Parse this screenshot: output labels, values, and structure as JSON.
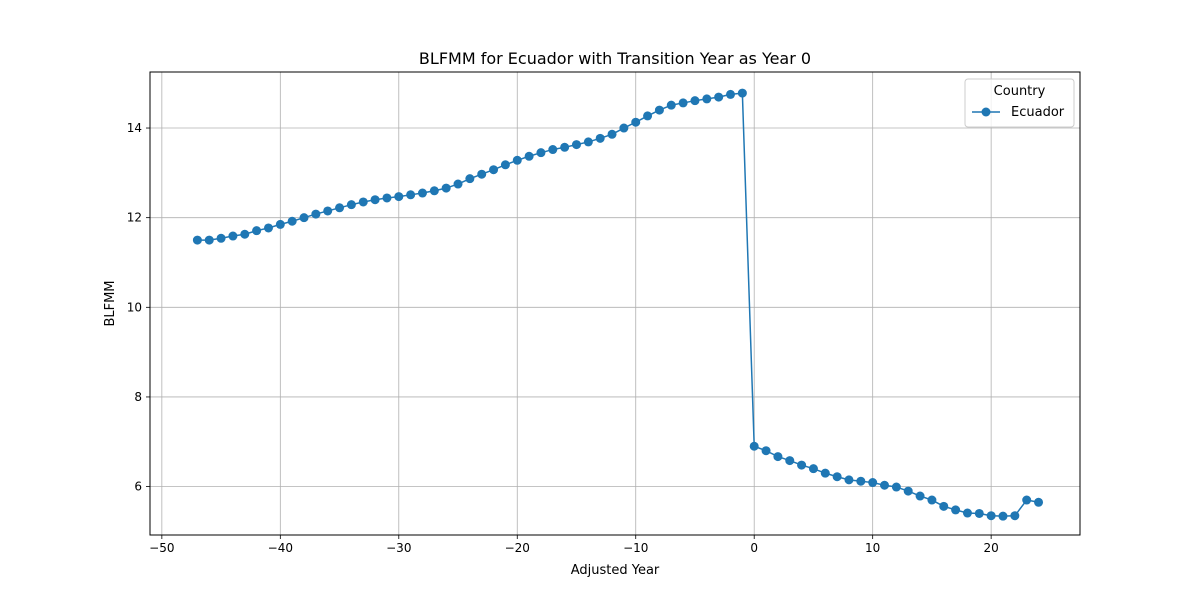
{
  "chart_data": {
    "type": "line",
    "title": "BLFMM for Ecuador with Transition Year as Year 0",
    "xlabel": "Adjusted Year",
    "ylabel": "BLFMM",
    "xlim": [
      -51,
      27.5
    ],
    "ylim": [
      4.92,
      15.25
    ],
    "xticks": [
      -50,
      -40,
      -30,
      -20,
      -10,
      0,
      10,
      20
    ],
    "xtick_labels": [
      "−50",
      "−40",
      "−30",
      "−20",
      "−10",
      "0",
      "10",
      "20"
    ],
    "yticks": [
      6,
      8,
      10,
      12,
      14
    ],
    "ytick_labels": [
      "6",
      "8",
      "10",
      "12",
      "14"
    ],
    "grid": true,
    "legend": {
      "title": "Country",
      "placement": "top-right"
    },
    "series": [
      {
        "name": "Ecuador",
        "color": "#1f77b4",
        "marker": "circle",
        "x": [
          -47,
          -46,
          -45,
          -44,
          -43,
          -42,
          -41,
          -40,
          -39,
          -38,
          -37,
          -36,
          -35,
          -34,
          -33,
          -32,
          -31,
          -30,
          -29,
          -28,
          -27,
          -26,
          -25,
          -24,
          -23,
          -22,
          -21,
          -20,
          -19,
          -18,
          -17,
          -16,
          -15,
          -14,
          -13,
          -12,
          -11,
          -10,
          -9,
          -8,
          -7,
          -6,
          -5,
          -4,
          -3,
          -2,
          -1,
          0,
          1,
          2,
          3,
          4,
          5,
          6,
          7,
          8,
          9,
          10,
          11,
          12,
          13,
          14,
          15,
          16,
          17,
          18,
          19,
          20,
          21,
          22,
          23,
          24
        ],
        "y": [
          11.5,
          11.5,
          11.54,
          11.59,
          11.63,
          11.71,
          11.77,
          11.85,
          11.92,
          12.0,
          12.08,
          12.15,
          12.22,
          12.29,
          12.35,
          12.4,
          12.44,
          12.47,
          12.51,
          12.55,
          12.6,
          12.66,
          12.75,
          12.87,
          12.97,
          13.07,
          13.18,
          13.28,
          13.37,
          13.45,
          13.52,
          13.57,
          13.63,
          13.69,
          13.77,
          13.86,
          14.0,
          14.13,
          14.27,
          14.4,
          14.51,
          14.56,
          14.61,
          14.65,
          14.69,
          14.75,
          14.78,
          6.9,
          6.8,
          6.67,
          6.58,
          6.48,
          6.4,
          6.3,
          6.22,
          6.15,
          6.12,
          6.09,
          6.03,
          5.99,
          5.9,
          5.79,
          5.7,
          5.56,
          5.48,
          5.41,
          5.4,
          5.35,
          5.34,
          5.35,
          5.7,
          5.65
        ]
      }
    ]
  }
}
